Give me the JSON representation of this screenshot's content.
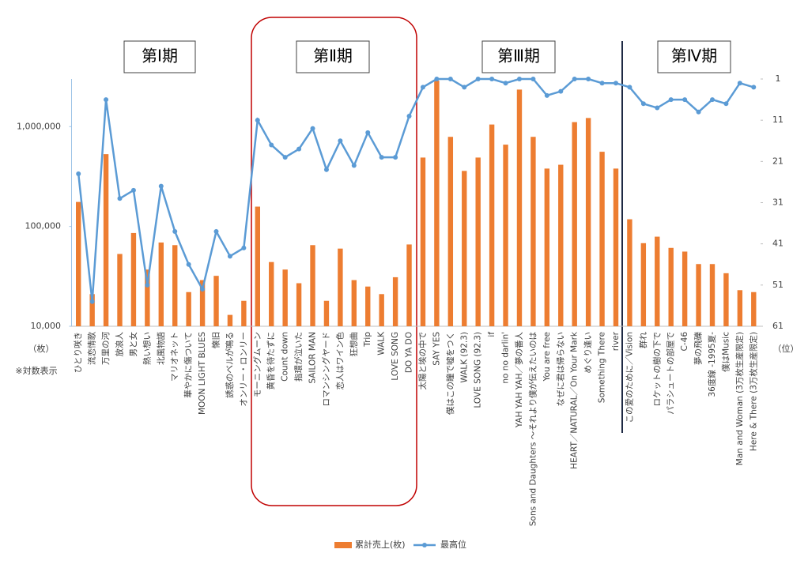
{
  "chart_data": {
    "type": "bar",
    "categories": [
      "ひとり咲き",
      "流恋情歌",
      "万里の河",
      "放浪人",
      "男と女",
      "熱い想い",
      "北風物語",
      "マリオネット",
      "華やかに傷ついて",
      "MOON LIGHT BLUES",
      "懐旧",
      "誘惑のベルが鳴る",
      "オンリー・ロンリー",
      "モーニングムーン",
      "黄昏を待たずに",
      "Count down",
      "指環が泣いた",
      "SAILOR MAN",
      "ロマンシングヤード",
      "恋人はワイン色",
      "狂想曲",
      "Trip",
      "WALK",
      "LOVE SONG",
      "DO YA DO",
      "太陽と埃の中で",
      "SAY YES",
      "僕はこの瞳で嘘をつく",
      "WALK (92.3)",
      "LOVE SONG (92.3)",
      "if",
      "no no darlin'",
      "YAH YAH YAH／夢の番人",
      "Sons and Daughters ～それより僕が伝えたいのは",
      "You are free",
      "なぜに君は帰らない",
      "HEART／NATURAL／On Your Mark",
      "めぐり逢い",
      "Something There",
      "river",
      "この愛のために／Vision",
      "群れ",
      "ロケットの樹の下で",
      "パラシュートの部屋で",
      "C-46",
      "夢の飛礫",
      "36度線 -1995夏-",
      "僕はMusic",
      "Man and Woman (3万枚生産限定)",
      "Here & There (3万枚生産限定)"
    ],
    "series": [
      {
        "name": "累計売上(枚)",
        "color": "#ed7d31",
        "type": "bar",
        "values": [
          176000,
          21000,
          530000,
          53000,
          86000,
          37000,
          69000,
          65000,
          22000,
          29000,
          32000,
          13000,
          18000,
          158000,
          44000,
          37000,
          27000,
          65000,
          18000,
          60000,
          29000,
          25000,
          21000,
          31000,
          66000,
          490000,
          2890000,
          790000,
          360000,
          490000,
          1050000,
          660000,
          2350000,
          790000,
          380000,
          415000,
          1110000,
          1220000,
          560000,
          380000,
          118000,
          68000,
          79000,
          61000,
          56000,
          42000,
          42000,
          34000,
          23000,
          22000
        ]
      },
      {
        "name": "最高位",
        "color": "#5b9bd5",
        "type": "line",
        "axis": "y2",
        "values": [
          24,
          55,
          6,
          30,
          28,
          51,
          27,
          38,
          46,
          52,
          38,
          44,
          42,
          11,
          17,
          20,
          18,
          13,
          23,
          16,
          22,
          14,
          20,
          20,
          10,
          3,
          1,
          1,
          3,
          1,
          1,
          2,
          1,
          1,
          5,
          4,
          1,
          1,
          2,
          2,
          3,
          7,
          8,
          6,
          6,
          9,
          6,
          7,
          2,
          3
        ]
      }
    ],
    "log_scale": true,
    "ylim": [
      10000,
      3000000
    ],
    "yticks": [
      {
        "value": 10000,
        "label": "10,000"
      },
      {
        "value": 100000,
        "label": "100,000"
      },
      {
        "value": 1000000,
        "label": "1,000,000"
      }
    ],
    "y2lim": [
      61,
      1
    ],
    "y2ticks": [
      1,
      11,
      21,
      31,
      41,
      51,
      61
    ],
    "y_label": "（枚）",
    "y2_label": "（位）",
    "note": "※対数表示",
    "periods": [
      "第Ⅰ期",
      "第Ⅱ期",
      "第Ⅲ期",
      "第Ⅳ期"
    ],
    "legend": "bottom"
  }
}
